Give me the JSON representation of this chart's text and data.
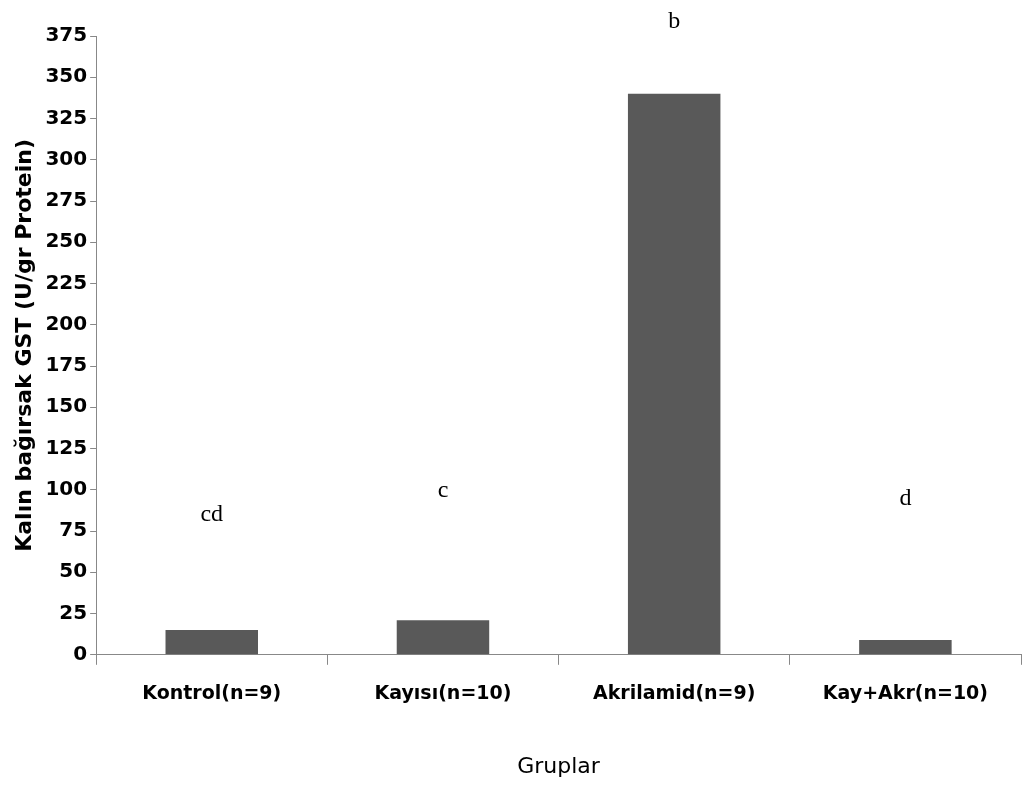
{
  "chart_data": {
    "type": "bar",
    "xlabel": "Gruplar",
    "ylabel": "Kalın bağırsak GST (U/gr Protein)",
    "categories": [
      "Kontrol(n=9)",
      "Kayısı(n=10)",
      "Akrilamid(n=9)",
      "Kay+Akr(n=10)"
    ],
    "values": [
      15,
      21,
      340,
      9
    ],
    "color": "#595959",
    "ylim": [
      0,
      375
    ],
    "yticks": [
      0,
      25,
      50,
      75,
      100,
      125,
      150,
      175,
      200,
      225,
      250,
      275,
      300,
      325,
      350,
      375
    ],
    "grid": false,
    "legend": false,
    "annotations": [
      "cd",
      "c",
      "b",
      "d"
    ]
  }
}
